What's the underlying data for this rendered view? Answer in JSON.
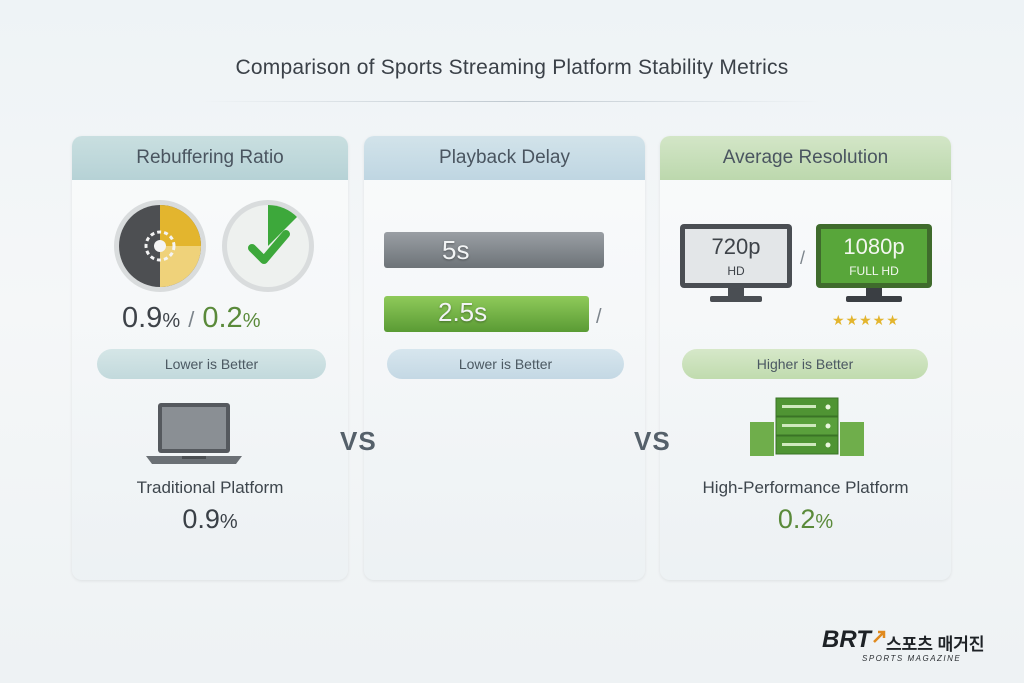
{
  "title": "Comparison of Sports Streaming Platform Stability Metrics",
  "panels": {
    "rebuffering": {
      "header": "Rebuffering Ratio",
      "value_a": "0.9",
      "value_b": "0.2",
      "percent": "%",
      "separator": "/",
      "pill": "Lower is Better"
    },
    "delay": {
      "header": "Playback Delay",
      "bar_a_label": "5s",
      "bar_b_label": "2.5s",
      "separator": "/",
      "pill": "Lower is Better"
    },
    "resolution": {
      "header": "Average Resolution",
      "monitor_a_res": "720p",
      "monitor_a_sub": "HD",
      "monitor_b_res": "1080p",
      "monitor_b_sub": "FULL HD",
      "separator": "/",
      "stars": "★★★★★",
      "pill": "Higher is Better"
    }
  },
  "vs_label": "VS",
  "platforms": {
    "traditional": {
      "name": "Traditional Platform",
      "value": "0.9",
      "percent": "%"
    },
    "high_performance": {
      "name": "High-Performance Platform",
      "value": "0.2",
      "percent": "%"
    }
  },
  "logo": {
    "brand": "BRT",
    "korean": "스포츠 매거진",
    "tagline": "SPORTS MAGAZINE"
  },
  "colors": {
    "accent_green": "#5a8a3a",
    "accent_yellow": "#e3b52e",
    "dark_gray": "#4b4f54"
  }
}
